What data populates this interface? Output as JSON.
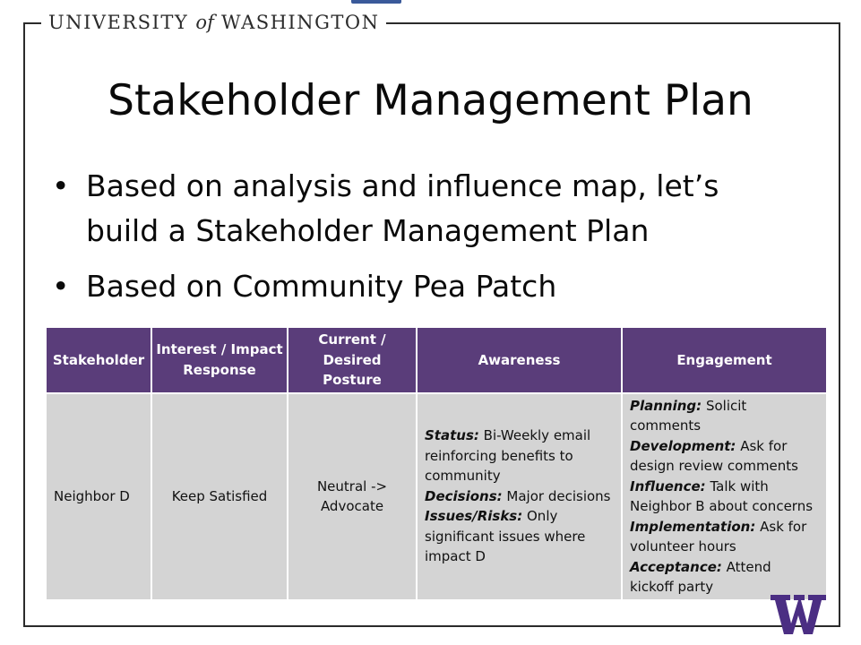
{
  "header": {
    "brand_left": "UNIVERSITY",
    "brand_of": "of",
    "brand_right": "WASHINGTON",
    "logo_letter": "W",
    "logo_icon": "uw-w-logo-icon",
    "brand_color": "#4b2e83"
  },
  "slide": {
    "title": "Stakeholder Management Plan",
    "bullets": [
      {
        "text": "Based on analysis and influence map, let’s build a Stakeholder Management Plan"
      },
      {
        "text": "Based on Community Pea Patch"
      }
    ]
  },
  "table": {
    "header_color": "#5a3d7a",
    "cell_color": "#d4d4d4",
    "columns": [
      {
        "label": "Stakeholder"
      },
      {
        "label": "Interest / Impact Response"
      },
      {
        "label": "Current / Desired Posture"
      },
      {
        "label": "Awareness"
      },
      {
        "label": "Engagement"
      }
    ],
    "rows": [
      {
        "stakeholder": "Neighbor D",
        "interest": "Keep Satisfied",
        "posture": "Neutral -> Advocate",
        "awareness": [
          {
            "label": "Status:",
            "text": "Bi-Weekly email reinforcing benefits to community"
          },
          {
            "label": "Decisions:",
            "text": "Major decisions"
          },
          {
            "label": "Issues/Risks:",
            "text": "Only significant issues where impact D"
          }
        ],
        "engagement": [
          {
            "label": "Planning:",
            "text": "Solicit comments"
          },
          {
            "label": "Development:",
            "text": "Ask for design review comments"
          },
          {
            "label": "Influence:",
            "text": "Talk with Neighbor B about concerns"
          },
          {
            "label": "Implementation:",
            "text": "Ask for volunteer hours"
          },
          {
            "label": "Acceptance:",
            "text": "Attend kickoff party"
          }
        ]
      }
    ]
  }
}
